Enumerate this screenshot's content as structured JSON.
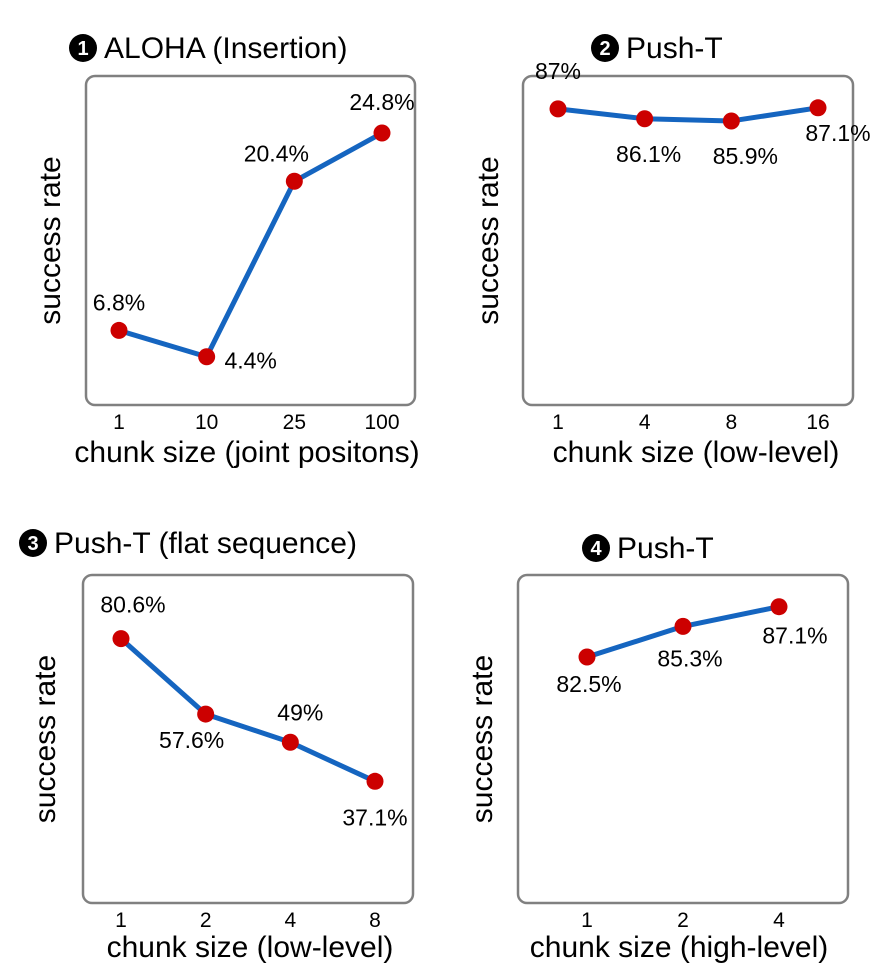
{
  "colors": {
    "line": "#1565C0",
    "point": "#CC0000"
  },
  "chart_data": [
    {
      "type": "line",
      "badge": "1",
      "title": "ALOHA (Insertion)",
      "ylabel": "success rate",
      "xlabel": "chunk size (joint positons)",
      "categories": [
        "1",
        "10",
        "25",
        "100"
      ],
      "values": [
        6.8,
        4.4,
        20.4,
        24.8
      ],
      "labels": [
        "6.8%",
        "4.4%",
        "20.4%",
        "24.8%"
      ],
      "ylim": [
        0,
        30
      ]
    },
    {
      "type": "line",
      "badge": "2",
      "title": "Push-T",
      "ylabel": "success rate",
      "xlabel": "chunk size (low-level)",
      "categories": [
        "1",
        "4",
        "8",
        "16"
      ],
      "values": [
        87,
        86.1,
        85.9,
        87.1
      ],
      "labels": [
        "87%",
        "86.1%",
        "85.9%",
        "87.1%"
      ],
      "ylim": [
        60,
        90
      ]
    },
    {
      "type": "line",
      "badge": "3",
      "title": "Push-T (flat sequence)",
      "ylabel": "success rate",
      "xlabel": "chunk size (low-level)",
      "categories": [
        "1",
        "2",
        "4",
        "8"
      ],
      "values": [
        80.6,
        57.6,
        49,
        37.1
      ],
      "labels": [
        "80.6%",
        "57.6%",
        "49%",
        "37.1%"
      ],
      "ylim": [
        0,
        100
      ]
    },
    {
      "type": "line",
      "badge": "4",
      "title": "Push-T",
      "ylabel": "success rate",
      "xlabel": "chunk size (high-level)",
      "categories": [
        "1",
        "2",
        "4"
      ],
      "values": [
        82.5,
        85.3,
        87.1
      ],
      "labels": [
        "82.5%",
        "85.3%",
        "87.1%"
      ],
      "ylim": [
        60,
        90
      ]
    }
  ]
}
